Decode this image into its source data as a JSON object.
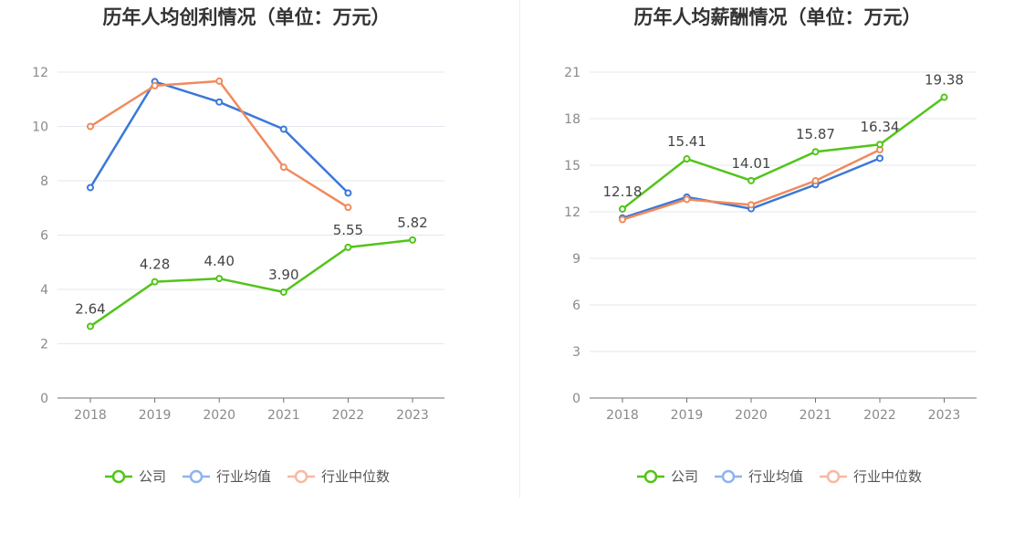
{
  "chart_data": [
    {
      "type": "line",
      "title": "历年人均创利情况（单位：万元）",
      "categories": [
        "2018",
        "2019",
        "2020",
        "2021",
        "2022",
        "2023"
      ],
      "yticks": [
        0,
        2,
        4,
        6,
        8,
        10,
        12
      ],
      "ylim": [
        0,
        12
      ],
      "grid": true,
      "legend_position": "bottom-center",
      "series": [
        {
          "name": "公司",
          "color": "#52c41a",
          "values": [
            2.64,
            4.28,
            4.4,
            3.9,
            5.55,
            5.82
          ],
          "labels": [
            "2.64",
            "4.28",
            "4.40",
            "3.90",
            "5.55",
            "5.82"
          ]
        },
        {
          "name": "行业均值",
          "color": "#3a78d8",
          "values": [
            7.75,
            11.65,
            10.9,
            9.9,
            7.55,
            null
          ]
        },
        {
          "name": "行业中位数",
          "color": "#f08a5d",
          "values": [
            10.0,
            11.5,
            11.67,
            8.5,
            7.02,
            null
          ]
        }
      ]
    },
    {
      "type": "line",
      "title": "历年人均薪酬情况（单位：万元）",
      "categories": [
        "2018",
        "2019",
        "2020",
        "2021",
        "2022",
        "2023"
      ],
      "yticks": [
        0,
        3,
        6,
        9,
        12,
        15,
        18,
        21
      ],
      "ylim": [
        0,
        21
      ],
      "grid": true,
      "legend_position": "bottom-center",
      "series": [
        {
          "name": "公司",
          "color": "#52c41a",
          "values": [
            12.18,
            15.41,
            14.01,
            15.87,
            16.34,
            19.38
          ],
          "labels": [
            "12.18",
            "15.41",
            "14.01",
            "15.87",
            "16.34",
            "19.38"
          ]
        },
        {
          "name": "行业均值",
          "color": "#3a78d8",
          "values": [
            11.6,
            12.95,
            12.2,
            13.75,
            15.45,
            null
          ]
        },
        {
          "name": "行业中位数",
          "color": "#f08a5d",
          "values": [
            11.5,
            12.8,
            12.45,
            14.0,
            16.0,
            null
          ]
        }
      ]
    }
  ],
  "legend_colors": [
    "#52c41a",
    "#8fb3ec",
    "#f7b9a1"
  ]
}
